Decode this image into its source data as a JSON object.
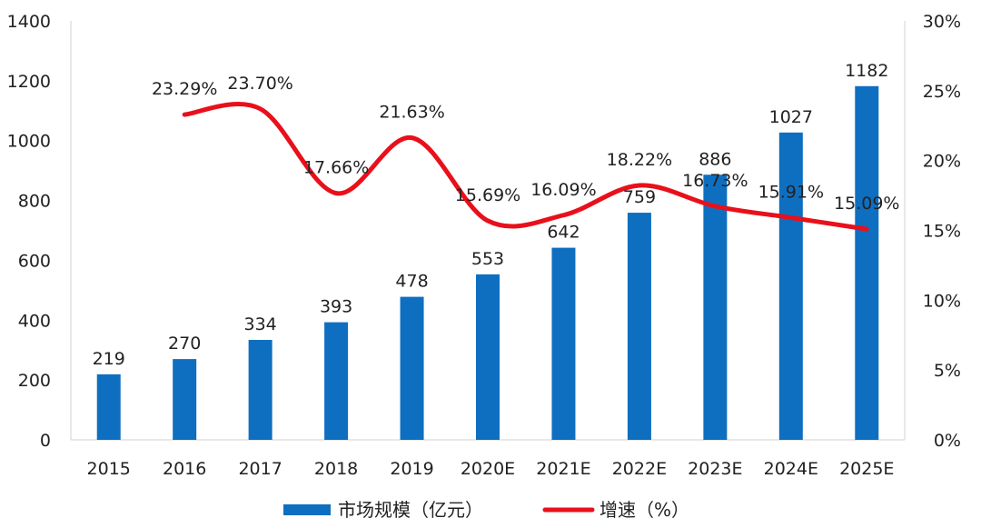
{
  "chart_data": {
    "type": "bar+line",
    "categories": [
      "2015",
      "2016",
      "2017",
      "2018",
      "2019",
      "2020E",
      "2021E",
      "2022E",
      "2023E",
      "2024E",
      "2025E"
    ],
    "series": [
      {
        "name": "市场规模（亿元）",
        "type": "bar",
        "axis": "left",
        "color": "#0E6FC0",
        "values": [
          219,
          270,
          334,
          393,
          478,
          553,
          642,
          759,
          886,
          1027,
          1182
        ],
        "labels": [
          "219",
          "270",
          "334",
          "393",
          "478",
          "553",
          "642",
          "759",
          "886",
          "1027",
          "1182"
        ]
      },
      {
        "name": "增速（%）",
        "type": "line",
        "axis": "right",
        "color": "#E8101A",
        "values": [
          null,
          23.29,
          23.7,
          17.66,
          21.63,
          15.69,
          16.09,
          18.22,
          16.73,
          15.91,
          15.09
        ],
        "labels": [
          "",
          "23.29%",
          "23.70%",
          "17.66%",
          "21.63%",
          "15.69%",
          "16.09%",
          "18.22%",
          "16.73%",
          "15.91%",
          "15.09%"
        ]
      }
    ],
    "y_left": {
      "range": [
        0,
        1400
      ],
      "ticks": [
        "0",
        "200",
        "400",
        "600",
        "800",
        "1000",
        "1200",
        "1400"
      ],
      "values": [
        0,
        200,
        400,
        600,
        800,
        1000,
        1200,
        1400
      ]
    },
    "y_right": {
      "range": [
        0,
        30
      ],
      "ticks": [
        "0%",
        "5%",
        "10%",
        "15%",
        "20%",
        "25%",
        "30%"
      ],
      "values": [
        0,
        5,
        10,
        15,
        20,
        25,
        30
      ]
    },
    "legend": {
      "position": "bottom",
      "items": [
        "市场规模（亿元）",
        "增速（%）"
      ]
    },
    "grid": false
  }
}
